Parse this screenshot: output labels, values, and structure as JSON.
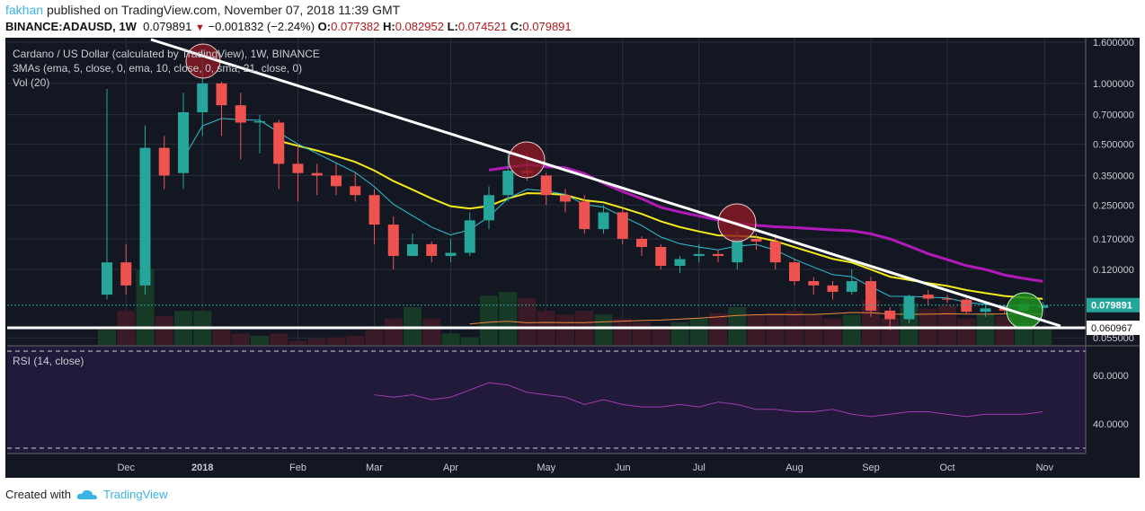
{
  "header": {
    "user": "fakhan",
    "published": "published on TradingView.com, November 07, 2018 11:39 GMT",
    "symbol": "BINANCE:ADAUSD, 1W",
    "last": "0.079891",
    "change": "−0.001832 (−2.24%)",
    "o_label": "O:",
    "o": "0.077382",
    "h_label": "H:",
    "h": "0.082952",
    "l_label": "L:",
    "l": "0.074521",
    "c_label": "C:",
    "c": "0.079891"
  },
  "legend": {
    "title": "Cardano / US Dollar (calculated by TradingView), 1W, BINANCE",
    "mas": "3MAs (ema, 5, close, 0, ema, 10, close, 0, sma, 21, close, 0)",
    "vol": "Vol (20)",
    "rsi": "RSI (14, close)"
  },
  "footer": {
    "created": "Created with",
    "brand": "TradingView"
  },
  "colors": {
    "up": "#26a69a",
    "down": "#ef5350",
    "ema5": "#2ec4d6",
    "ema10": "#f2ea1b",
    "sma21": "#b21ab8",
    "rsi": "#a03ab0",
    "bg": "#131722"
  },
  "chart_data": {
    "type": "candlestick",
    "title": "Cardano / US Dollar, 1W, BINANCE",
    "scale": "log",
    "ylim": [
      0.053,
      1.7
    ],
    "y_ticks": [
      "1.600000",
      "1.000000",
      "0.700000",
      "0.500000",
      "0.350000",
      "0.250000",
      "0.170000",
      "0.120000",
      "0.055000"
    ],
    "y_tick_values": [
      1.6,
      1.0,
      0.7,
      0.5,
      0.35,
      0.25,
      0.17,
      0.12,
      0.055
    ],
    "x_ticks": [
      "Dec",
      "2018",
      "Feb",
      "Mar",
      "Apr",
      "May",
      "Jun",
      "Jul",
      "Aug",
      "Sep",
      "Oct",
      "Nov"
    ],
    "x_tick_index": [
      1,
      5,
      10,
      14,
      18,
      23,
      27,
      31,
      36,
      40,
      44,
      49.1
    ],
    "price_label": "0.079891",
    "line_label": "0.060967",
    "support_level": 0.060967,
    "rsi_ticks": [
      "60.0000",
      "40.0000"
    ],
    "rsi_tick_values": [
      60,
      40
    ],
    "rsi_bands": [
      70,
      30
    ],
    "ohlc": [
      [
        0.09,
        0.94,
        0.085,
        0.13
      ],
      [
        0.13,
        0.16,
        0.09,
        0.1
      ],
      [
        0.1,
        0.62,
        0.09,
        0.48
      ],
      [
        0.48,
        0.55,
        0.3,
        0.35
      ],
      [
        0.36,
        0.9,
        0.3,
        0.72
      ],
      [
        0.72,
        1.3,
        0.55,
        1.0
      ],
      [
        1.0,
        1.02,
        0.55,
        0.78
      ],
      [
        0.78,
        0.9,
        0.42,
        0.64
      ],
      [
        0.64,
        0.7,
        0.45,
        0.65
      ],
      [
        0.64,
        0.66,
        0.3,
        0.4
      ],
      [
        0.4,
        0.5,
        0.26,
        0.36
      ],
      [
        0.36,
        0.4,
        0.28,
        0.35
      ],
      [
        0.35,
        0.4,
        0.28,
        0.31
      ],
      [
        0.31,
        0.36,
        0.26,
        0.28
      ],
      [
        0.28,
        0.3,
        0.16,
        0.2
      ],
      [
        0.2,
        0.22,
        0.12,
        0.14
      ],
      [
        0.14,
        0.18,
        0.14,
        0.16
      ],
      [
        0.16,
        0.165,
        0.13,
        0.14
      ],
      [
        0.14,
        0.17,
        0.13,
        0.145
      ],
      [
        0.145,
        0.23,
        0.14,
        0.21
      ],
      [
        0.21,
        0.31,
        0.19,
        0.28
      ],
      [
        0.28,
        0.45,
        0.26,
        0.37
      ],
      [
        0.37,
        0.45,
        0.33,
        0.36
      ],
      [
        0.35,
        0.36,
        0.25,
        0.28
      ],
      [
        0.28,
        0.3,
        0.23,
        0.26
      ],
      [
        0.26,
        0.28,
        0.18,
        0.19
      ],
      [
        0.19,
        0.25,
        0.18,
        0.23
      ],
      [
        0.23,
        0.24,
        0.16,
        0.17
      ],
      [
        0.17,
        0.175,
        0.14,
        0.155
      ],
      [
        0.155,
        0.16,
        0.12,
        0.125
      ],
      [
        0.125,
        0.14,
        0.115,
        0.135
      ],
      [
        0.14,
        0.16,
        0.13,
        0.143
      ],
      [
        0.143,
        0.15,
        0.13,
        0.14
      ],
      [
        0.13,
        0.19,
        0.12,
        0.17
      ],
      [
        0.17,
        0.18,
        0.15,
        0.165
      ],
      [
        0.165,
        0.18,
        0.12,
        0.13
      ],
      [
        0.13,
        0.135,
        0.1,
        0.105
      ],
      [
        0.105,
        0.11,
        0.09,
        0.1
      ],
      [
        0.1,
        0.105,
        0.085,
        0.093
      ],
      [
        0.093,
        0.12,
        0.09,
        0.105
      ],
      [
        0.105,
        0.11,
        0.07,
        0.075
      ],
      [
        0.075,
        0.078,
        0.06,
        0.068
      ],
      [
        0.068,
        0.09,
        0.065,
        0.088
      ],
      [
        0.09,
        0.095,
        0.08,
        0.086
      ],
      [
        0.086,
        0.09,
        0.082,
        0.085
      ],
      [
        0.085,
        0.09,
        0.072,
        0.074
      ],
      [
        0.074,
        0.08,
        0.07,
        0.077
      ],
      [
        0.077,
        0.08,
        0.072,
        0.075
      ],
      [
        0.075,
        0.085,
        0.073,
        0.081
      ],
      [
        0.077382,
        0.082952,
        0.074521,
        0.079891
      ]
    ],
    "volume": [
      20,
      45,
      100,
      38,
      45,
      45,
      20,
      15,
      12,
      15,
      5,
      8,
      10,
      12,
      20,
      35,
      50,
      35,
      15,
      10,
      65,
      70,
      62,
      45,
      40,
      45,
      40,
      35,
      30,
      25,
      30,
      35,
      42,
      50,
      40,
      42,
      45,
      40,
      35,
      40,
      60,
      35,
      55,
      48,
      52,
      35,
      42,
      38,
      30,
      20
    ],
    "rsi": [
      null,
      null,
      null,
      null,
      null,
      null,
      null,
      null,
      null,
      null,
      null,
      null,
      null,
      null,
      52,
      51,
      52,
      50,
      51,
      54,
      57,
      56,
      53,
      52,
      51,
      48,
      50,
      48,
      47,
      47,
      48,
      47,
      49,
      48,
      46,
      46,
      45,
      45,
      46,
      44,
      43,
      44,
      45,
      45,
      44,
      43,
      44,
      44,
      44,
      45
    ]
  }
}
